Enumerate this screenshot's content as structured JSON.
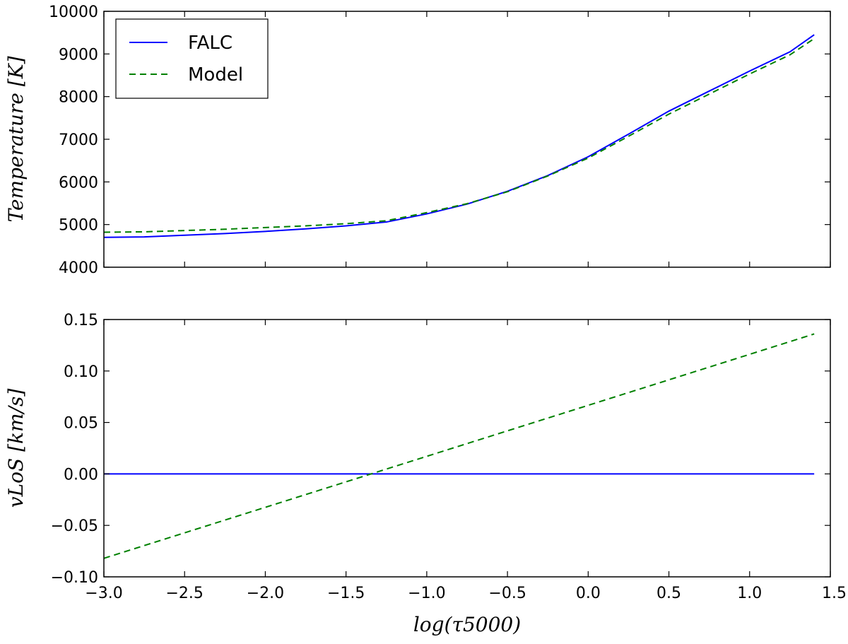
{
  "chart_data": [
    {
      "type": "line",
      "panel": "top",
      "xlabel": "log(τ5000)",
      "ylabel": "Temperature [K]",
      "xlim": [
        -3.0,
        1.4
      ],
      "ylim": [
        4000,
        10000
      ],
      "yticks": [
        "4000",
        "5000",
        "6000",
        "7000",
        "8000",
        "9000",
        "10000"
      ],
      "xticks_shown": false,
      "grid": false,
      "legend": {
        "placement": "top-left",
        "entries": [
          {
            "label": "FALC",
            "color": "#0000ff",
            "style": "solid"
          },
          {
            "label": "Model",
            "color": "#008000",
            "style": "dashed"
          }
        ]
      },
      "x": [
        -3.0,
        -2.75,
        -2.5,
        -2.25,
        -2.0,
        -1.75,
        -1.5,
        -1.25,
        -1.0,
        -0.75,
        -0.5,
        -0.25,
        0.0,
        0.25,
        0.5,
        0.75,
        1.0,
        1.25,
        1.4
      ],
      "series": [
        {
          "name": "FALC",
          "color": "#0000ff",
          "style": "solid",
          "values": [
            4700,
            4710,
            4750,
            4790,
            4840,
            4900,
            4970,
            5060,
            5250,
            5480,
            5780,
            6150,
            6590,
            7120,
            7660,
            8130,
            8600,
            9050,
            9450
          ]
        },
        {
          "name": "Model",
          "color": "#008000",
          "style": "dashed",
          "values": [
            4820,
            4830,
            4860,
            4890,
            4930,
            4970,
            5020,
            5090,
            5280,
            5490,
            5770,
            6140,
            6560,
            7070,
            7590,
            8060,
            8530,
            8980,
            9360
          ]
        }
      ]
    },
    {
      "type": "line",
      "panel": "bottom",
      "xlabel": "log(τ5000)",
      "ylabel": "vLoS [km/s]",
      "xlim": [
        -3.0,
        1.4
      ],
      "ylim": [
        -0.1,
        0.15
      ],
      "xticks": [
        "−3.0",
        "−2.5",
        "−2.0",
        "−1.5",
        "−1.0",
        "−0.5",
        "0.0",
        "0.5",
        "1.0",
        "1.5"
      ],
      "yticks": [
        "−0.10",
        "−0.05",
        "0.00",
        "0.05",
        "0.10",
        "0.15"
      ],
      "grid": false,
      "x": [
        -3.0,
        1.4
      ],
      "series": [
        {
          "name": "FALC",
          "color": "#0000ff",
          "style": "solid",
          "values": [
            0.0,
            0.0
          ]
        },
        {
          "name": "Model",
          "color": "#008000",
          "style": "dashed",
          "values": [
            -0.082,
            0.136
          ]
        }
      ]
    }
  ]
}
